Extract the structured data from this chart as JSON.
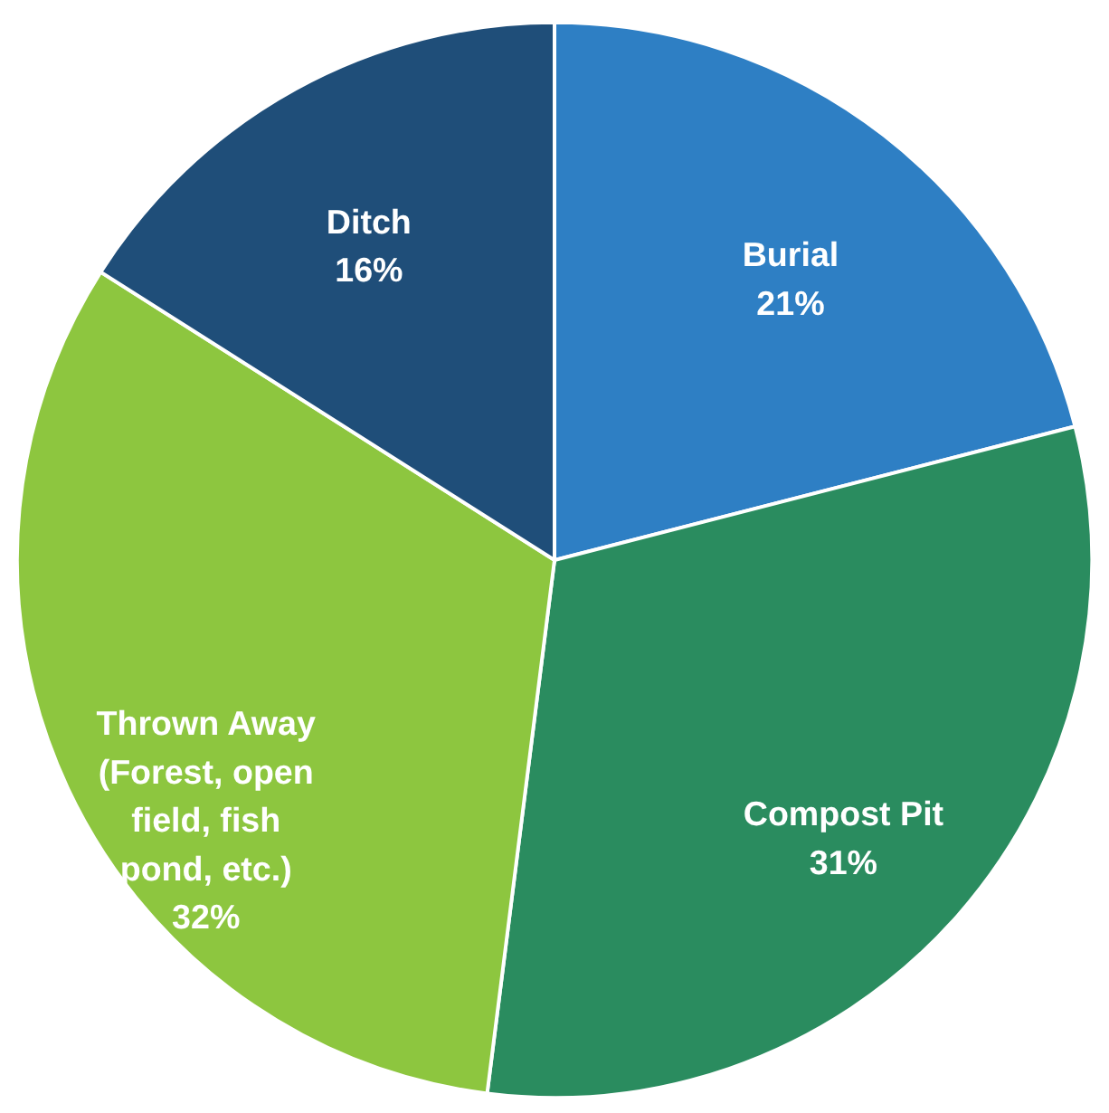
{
  "chart_data": {
    "type": "pie",
    "categories": [
      "Burial",
      "Compost Pit",
      "Thrown Away (Forest, open field, fish pond, etc.)",
      "Ditch"
    ],
    "values": [
      21,
      31,
      32,
      16
    ],
    "value_labels": [
      "21%",
      "31%",
      "32%",
      "16%"
    ],
    "colors": [
      "#2e7fc4",
      "#2a8c5f",
      "#8dc63f",
      "#1f4e79"
    ],
    "legend": false
  }
}
